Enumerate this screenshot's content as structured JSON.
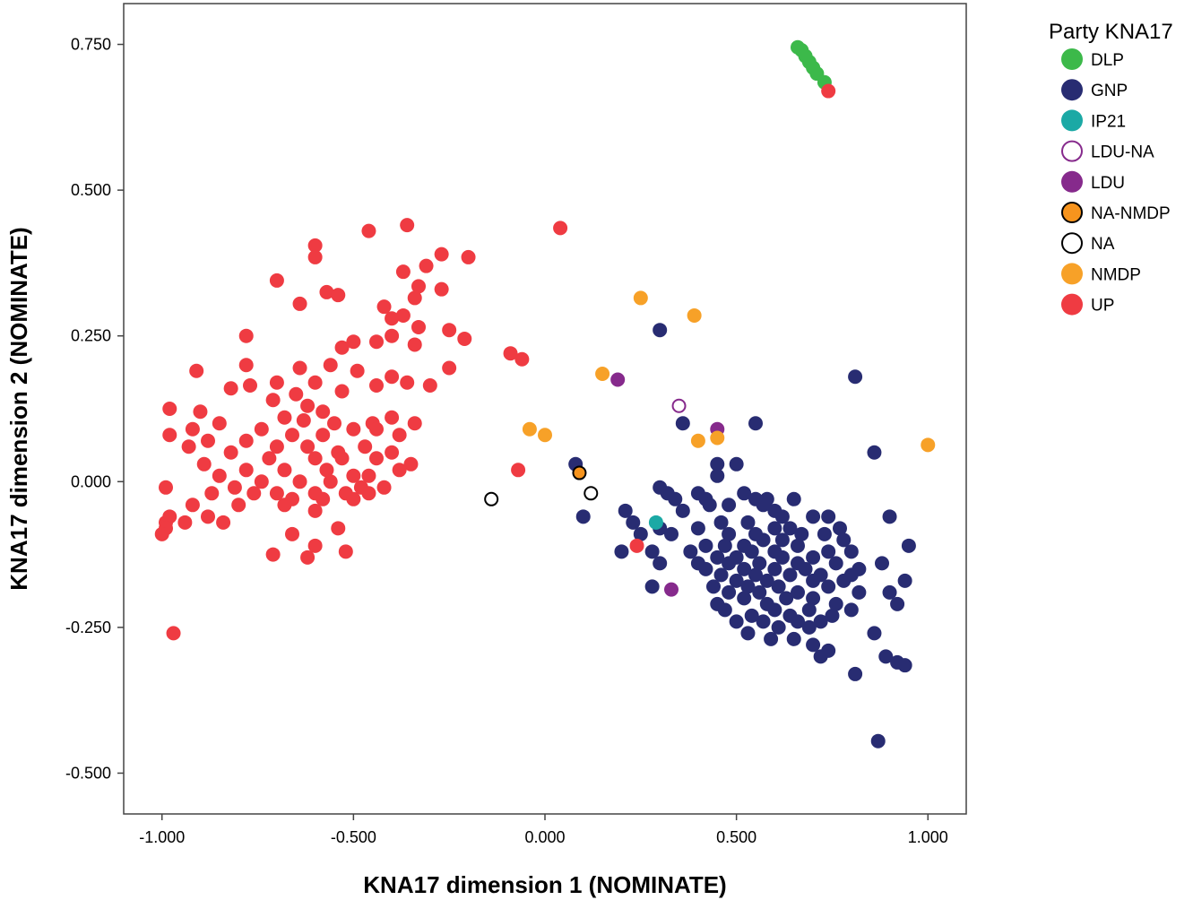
{
  "chart_data": {
    "type": "scatter",
    "xlabel": "KNA17 dimension 1 (NOMINATE)",
    "ylabel": "KNA17 dimension 2 (NOMINATE)",
    "xlim": [
      -1.1,
      1.1
    ],
    "ylim": [
      -0.57,
      0.82
    ],
    "x_ticks": [
      -1.0,
      -0.5,
      0.0,
      0.5,
      1.0
    ],
    "x_tick_labels": [
      "-1.000",
      "-0.500",
      "0.000",
      "0.500",
      "1.000"
    ],
    "y_ticks": [
      -0.5,
      -0.25,
      0.0,
      0.25,
      0.5,
      0.75
    ],
    "y_tick_labels": [
      "-0.500",
      "-0.250",
      "0.000",
      "0.250",
      "0.500",
      "0.750"
    ],
    "grid": false,
    "legend": {
      "title": "Party KNA17",
      "placement": "top-right outside",
      "entries": [
        {
          "name": "DLP",
          "color": "#3CB94A",
          "style": "filled"
        },
        {
          "name": "GNP",
          "color": "#282C72",
          "style": "filled"
        },
        {
          "name": "IP21",
          "color": "#1BA9A5",
          "style": "filled"
        },
        {
          "name": "LDU-NA",
          "color": "#862A8C",
          "style": "open"
        },
        {
          "name": "LDU",
          "color": "#862A8C",
          "style": "filled"
        },
        {
          "name": "NA-NMDP",
          "color": "#F7941D",
          "style": "filled-outlined"
        },
        {
          "name": "NA",
          "color": "#000000",
          "style": "open"
        },
        {
          "name": "NMDP",
          "color": "#F7A128",
          "style": "filled"
        },
        {
          "name": "UP",
          "color": "#EF3B42",
          "style": "filled"
        }
      ]
    },
    "series": [
      {
        "name": "DLP",
        "points": [
          [
            0.66,
            0.745
          ],
          [
            0.67,
            0.74
          ],
          [
            0.68,
            0.73
          ],
          [
            0.69,
            0.72
          ],
          [
            0.7,
            0.71
          ],
          [
            0.71,
            0.7
          ],
          [
            0.73,
            0.685
          ]
        ]
      },
      {
        "name": "GNP",
        "points": [
          [
            0.3,
            0.26
          ],
          [
            0.81,
            0.18
          ],
          [
            0.55,
            0.1
          ],
          [
            0.36,
            0.1
          ],
          [
            0.86,
            0.05
          ],
          [
            0.08,
            0.03
          ],
          [
            0.45,
            0.03
          ],
          [
            0.5,
            0.03
          ],
          [
            0.45,
            0.01
          ],
          [
            0.3,
            -0.01
          ],
          [
            0.32,
            -0.02
          ],
          [
            0.34,
            -0.03
          ],
          [
            0.4,
            -0.02
          ],
          [
            0.42,
            -0.03
          ],
          [
            0.52,
            -0.02
          ],
          [
            0.55,
            -0.03
          ],
          [
            0.58,
            -0.03
          ],
          [
            0.65,
            -0.03
          ],
          [
            0.43,
            -0.04
          ],
          [
            0.48,
            -0.04
          ],
          [
            0.57,
            -0.04
          ],
          [
            0.6,
            -0.05
          ],
          [
            0.21,
            -0.05
          ],
          [
            0.36,
            -0.05
          ],
          [
            0.62,
            -0.06
          ],
          [
            0.7,
            -0.06
          ],
          [
            0.74,
            -0.06
          ],
          [
            0.9,
            -0.06
          ],
          [
            0.1,
            -0.06
          ],
          [
            0.23,
            -0.07
          ],
          [
            0.46,
            -0.07
          ],
          [
            0.53,
            -0.07
          ],
          [
            0.6,
            -0.08
          ],
          [
            0.64,
            -0.08
          ],
          [
            0.3,
            -0.08
          ],
          [
            0.4,
            -0.08
          ],
          [
            0.25,
            -0.09
          ],
          [
            0.33,
            -0.09
          ],
          [
            0.48,
            -0.09
          ],
          [
            0.55,
            -0.09
          ],
          [
            0.67,
            -0.09
          ],
          [
            0.73,
            -0.09
          ],
          [
            0.77,
            -0.08
          ],
          [
            0.57,
            -0.1
          ],
          [
            0.62,
            -0.1
          ],
          [
            0.78,
            -0.1
          ],
          [
            0.42,
            -0.11
          ],
          [
            0.47,
            -0.11
          ],
          [
            0.52,
            -0.11
          ],
          [
            0.66,
            -0.11
          ],
          [
            0.95,
            -0.11
          ],
          [
            0.2,
            -0.12
          ],
          [
            0.28,
            -0.12
          ],
          [
            0.38,
            -0.12
          ],
          [
            0.54,
            -0.12
          ],
          [
            0.6,
            -0.12
          ],
          [
            0.74,
            -0.12
          ],
          [
            0.8,
            -0.12
          ],
          [
            0.45,
            -0.13
          ],
          [
            0.5,
            -0.13
          ],
          [
            0.62,
            -0.13
          ],
          [
            0.7,
            -0.13
          ],
          [
            0.3,
            -0.14
          ],
          [
            0.4,
            -0.14
          ],
          [
            0.48,
            -0.14
          ],
          [
            0.56,
            -0.14
          ],
          [
            0.66,
            -0.14
          ],
          [
            0.76,
            -0.14
          ],
          [
            0.88,
            -0.14
          ],
          [
            0.42,
            -0.15
          ],
          [
            0.52,
            -0.15
          ],
          [
            0.6,
            -0.15
          ],
          [
            0.68,
            -0.15
          ],
          [
            0.82,
            -0.15
          ],
          [
            0.46,
            -0.16
          ],
          [
            0.55,
            -0.16
          ],
          [
            0.64,
            -0.16
          ],
          [
            0.72,
            -0.16
          ],
          [
            0.8,
            -0.16
          ],
          [
            0.5,
            -0.17
          ],
          [
            0.58,
            -0.17
          ],
          [
            0.7,
            -0.17
          ],
          [
            0.78,
            -0.17
          ],
          [
            0.94,
            -0.17
          ],
          [
            0.44,
            -0.18
          ],
          [
            0.53,
            -0.18
          ],
          [
            0.61,
            -0.18
          ],
          [
            0.74,
            -0.18
          ],
          [
            0.28,
            -0.18
          ],
          [
            0.9,
            -0.19
          ],
          [
            0.48,
            -0.19
          ],
          [
            0.56,
            -0.19
          ],
          [
            0.66,
            -0.19
          ],
          [
            0.82,
            -0.19
          ],
          [
            0.52,
            -0.2
          ],
          [
            0.63,
            -0.2
          ],
          [
            0.7,
            -0.2
          ],
          [
            0.45,
            -0.21
          ],
          [
            0.58,
            -0.21
          ],
          [
            0.76,
            -0.21
          ],
          [
            0.92,
            -0.21
          ],
          [
            0.47,
            -0.22
          ],
          [
            0.6,
            -0.22
          ],
          [
            0.69,
            -0.22
          ],
          [
            0.8,
            -0.22
          ],
          [
            0.54,
            -0.23
          ],
          [
            0.64,
            -0.23
          ],
          [
            0.75,
            -0.23
          ],
          [
            0.5,
            -0.24
          ],
          [
            0.57,
            -0.24
          ],
          [
            0.66,
            -0.24
          ],
          [
            0.72,
            -0.24
          ],
          [
            0.61,
            -0.25
          ],
          [
            0.69,
            -0.25
          ],
          [
            0.53,
            -0.26
          ],
          [
            0.86,
            -0.26
          ],
          [
            0.59,
            -0.27
          ],
          [
            0.65,
            -0.27
          ],
          [
            0.7,
            -0.28
          ],
          [
            0.89,
            -0.3
          ],
          [
            0.74,
            -0.29
          ],
          [
            0.72,
            -0.3
          ],
          [
            0.92,
            -0.31
          ],
          [
            0.94,
            -0.315
          ],
          [
            0.81,
            -0.33
          ],
          [
            0.87,
            -0.445
          ]
        ]
      },
      {
        "name": "IP21",
        "points": [
          [
            0.29,
            -0.07
          ]
        ]
      },
      {
        "name": "LDU-NA",
        "points": [
          [
            0.35,
            0.13
          ]
        ]
      },
      {
        "name": "LDU",
        "points": [
          [
            0.19,
            0.175
          ],
          [
            0.45,
            0.09
          ],
          [
            0.33,
            -0.185
          ]
        ]
      },
      {
        "name": "NA-NMDP",
        "points": [
          [
            0.09,
            0.015
          ]
        ]
      },
      {
        "name": "NA",
        "points": [
          [
            -0.14,
            -0.03
          ],
          [
            0.12,
            -0.02
          ]
        ]
      },
      {
        "name": "NMDP",
        "points": [
          [
            0.25,
            0.315
          ],
          [
            0.39,
            0.285
          ],
          [
            0.15,
            0.185
          ],
          [
            -0.04,
            0.09
          ],
          [
            0.0,
            0.08
          ],
          [
            0.4,
            0.07
          ],
          [
            0.45,
            0.075
          ],
          [
            1.0,
            0.063
          ]
        ]
      },
      {
        "name": "UP",
        "points": [
          [
            0.74,
            0.67
          ],
          [
            0.04,
            0.435
          ],
          [
            -0.36,
            0.44
          ],
          [
            -0.46,
            0.43
          ],
          [
            -0.6,
            0.405
          ],
          [
            -0.6,
            0.385
          ],
          [
            -0.27,
            0.39
          ],
          [
            -0.2,
            0.385
          ],
          [
            -0.31,
            0.37
          ],
          [
            -0.37,
            0.36
          ],
          [
            -0.7,
            0.345
          ],
          [
            -0.33,
            0.335
          ],
          [
            -0.27,
            0.33
          ],
          [
            -0.57,
            0.325
          ],
          [
            -0.54,
            0.32
          ],
          [
            -0.34,
            0.315
          ],
          [
            -0.64,
            0.305
          ],
          [
            -0.42,
            0.3
          ],
          [
            -0.37,
            0.285
          ],
          [
            -0.4,
            0.28
          ],
          [
            -0.33,
            0.265
          ],
          [
            -0.25,
            0.26
          ],
          [
            -0.21,
            0.245
          ],
          [
            -0.4,
            0.25
          ],
          [
            -0.5,
            0.24
          ],
          [
            -0.78,
            0.25
          ],
          [
            -0.44,
            0.24
          ],
          [
            -0.34,
            0.235
          ],
          [
            -0.53,
            0.23
          ],
          [
            -0.09,
            0.22
          ],
          [
            -0.06,
            0.21
          ],
          [
            -0.56,
            0.2
          ],
          [
            -0.25,
            0.195
          ],
          [
            -0.49,
            0.19
          ],
          [
            -0.91,
            0.19
          ],
          [
            -0.78,
            0.2
          ],
          [
            -0.64,
            0.195
          ],
          [
            -0.4,
            0.18
          ],
          [
            -0.36,
            0.17
          ],
          [
            -0.3,
            0.165
          ],
          [
            -0.44,
            0.165
          ],
          [
            -0.6,
            0.17
          ],
          [
            -0.7,
            0.17
          ],
          [
            -0.77,
            0.165
          ],
          [
            -0.82,
            0.16
          ],
          [
            -0.53,
            0.155
          ],
          [
            -0.65,
            0.15
          ],
          [
            -0.71,
            0.14
          ],
          [
            -0.62,
            0.13
          ],
          [
            -0.58,
            0.12
          ],
          [
            -0.9,
            0.12
          ],
          [
            -0.98,
            0.125
          ],
          [
            -0.68,
            0.11
          ],
          [
            -0.63,
            0.105
          ],
          [
            -0.55,
            0.1
          ],
          [
            -0.45,
            0.1
          ],
          [
            -0.4,
            0.11
          ],
          [
            -0.34,
            0.1
          ],
          [
            -0.85,
            0.1
          ],
          [
            -0.92,
            0.09
          ],
          [
            -0.74,
            0.09
          ],
          [
            -0.66,
            0.08
          ],
          [
            -0.58,
            0.08
          ],
          [
            -0.5,
            0.09
          ],
          [
            -0.44,
            0.09
          ],
          [
            -0.38,
            0.08
          ],
          [
            -0.98,
            0.08
          ],
          [
            -0.88,
            0.07
          ],
          [
            -0.78,
            0.07
          ],
          [
            -0.7,
            0.06
          ],
          [
            -0.62,
            0.06
          ],
          [
            -0.54,
            0.05
          ],
          [
            -0.47,
            0.06
          ],
          [
            -0.4,
            0.05
          ],
          [
            -0.93,
            0.06
          ],
          [
            -0.82,
            0.05
          ],
          [
            -0.72,
            0.04
          ],
          [
            -0.6,
            0.04
          ],
          [
            -0.53,
            0.04
          ],
          [
            -0.44,
            0.04
          ],
          [
            -0.35,
            0.03
          ],
          [
            -0.89,
            0.03
          ],
          [
            -0.78,
            0.02
          ],
          [
            -0.68,
            0.02
          ],
          [
            -0.57,
            0.02
          ],
          [
            -0.5,
            0.01
          ],
          [
            -0.46,
            0.01
          ],
          [
            -0.38,
            0.02
          ],
          [
            -0.07,
            0.02
          ],
          [
            -0.85,
            0.01
          ],
          [
            -0.74,
            0.0
          ],
          [
            -0.64,
            0.0
          ],
          [
            -0.56,
            0.0
          ],
          [
            -0.48,
            -0.01
          ],
          [
            -0.42,
            -0.01
          ],
          [
            -0.81,
            -0.01
          ],
          [
            -0.7,
            -0.02
          ],
          [
            -0.6,
            -0.02
          ],
          [
            -0.52,
            -0.02
          ],
          [
            -0.46,
            -0.02
          ],
          [
            -0.99,
            -0.01
          ],
          [
            -0.87,
            -0.02
          ],
          [
            -0.76,
            -0.02
          ],
          [
            -0.66,
            -0.03
          ],
          [
            -0.58,
            -0.03
          ],
          [
            -0.5,
            -0.03
          ],
          [
            -0.92,
            -0.04
          ],
          [
            -0.8,
            -0.04
          ],
          [
            -0.68,
            -0.04
          ],
          [
            -0.6,
            -0.05
          ],
          [
            -0.98,
            -0.06
          ],
          [
            -0.88,
            -0.06
          ],
          [
            -0.99,
            -0.07
          ],
          [
            -0.94,
            -0.07
          ],
          [
            -0.84,
            -0.07
          ],
          [
            -0.99,
            -0.08
          ],
          [
            -0.54,
            -0.08
          ],
          [
            -0.66,
            -0.09
          ],
          [
            -1.0,
            -0.09
          ],
          [
            -0.6,
            -0.11
          ],
          [
            -0.52,
            -0.12
          ],
          [
            -0.71,
            -0.125
          ],
          [
            -0.62,
            -0.13
          ],
          [
            0.24,
            -0.11
          ],
          [
            -0.97,
            -0.26
          ]
        ]
      }
    ]
  }
}
